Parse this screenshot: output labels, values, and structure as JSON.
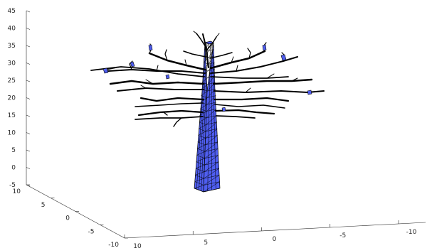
{
  "chart_data": {
    "type": "surface3d",
    "title": "",
    "xlabel": "",
    "ylabel": "",
    "zlabel": "",
    "grid": false,
    "z_axis": {
      "range": [
        -5,
        45
      ],
      "ticks": [
        "45",
        "40",
        "35",
        "30",
        "25",
        "20",
        "15",
        "10",
        "5",
        "0",
        "-5"
      ]
    },
    "y_axis": {
      "range": [
        -10,
        10
      ],
      "ticks": [
        "10",
        "5",
        "0",
        "-5",
        "-10"
      ]
    },
    "x_axis": {
      "range": [
        -10,
        10
      ],
      "ticks": [
        "10",
        "5",
        "0",
        "-5",
        "-10"
      ]
    },
    "trunk_color": "#4f5ef0",
    "branch_color": "#000000",
    "leaf_color": "#4f5ef0"
  }
}
